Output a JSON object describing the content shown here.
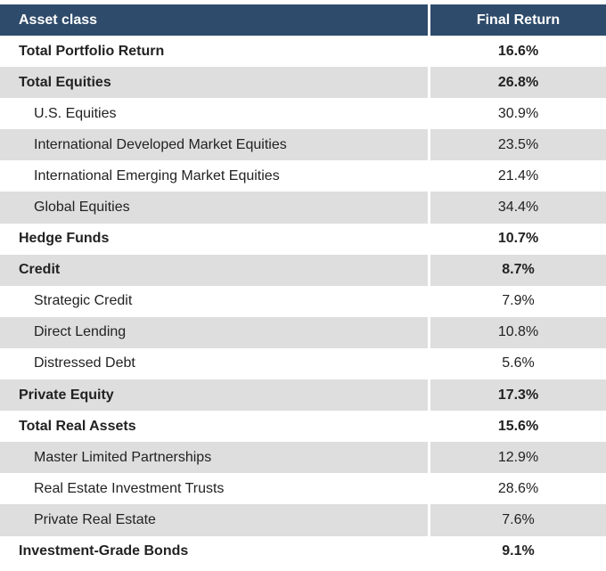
{
  "header": {
    "col_asset": "Asset class",
    "col_return": "Final Return"
  },
  "rows": [
    {
      "label": "Total Portfolio Return",
      "value": "16.6%"
    },
    {
      "label": "Total Equities",
      "value": "26.8%"
    },
    {
      "label": "U.S. Equities",
      "value": "30.9%"
    },
    {
      "label": "International Developed Market Equities",
      "value": "23.5%"
    },
    {
      "label": "International Emerging Market Equities",
      "value": "21.4%"
    },
    {
      "label": "Global Equities",
      "value": "34.4%"
    },
    {
      "label": "Hedge Funds",
      "value": "10.7%"
    },
    {
      "label": "Credit",
      "value": "8.7%"
    },
    {
      "label": "Strategic Credit",
      "value": "7.9%"
    },
    {
      "label": "Direct Lending",
      "value": "10.8%"
    },
    {
      "label": "Distressed Debt",
      "value": "5.6%"
    },
    {
      "label": "Private Equity",
      "value": "17.3%"
    },
    {
      "label": "Total Real Assets",
      "value": "15.6%"
    },
    {
      "label": "Master Limited Partnerships",
      "value": "12.9%"
    },
    {
      "label": "Real Estate Investment Trusts",
      "value": "28.6%"
    },
    {
      "label": "Private Real Estate",
      "value": "7.6%"
    },
    {
      "label": "Investment-Grade Bonds",
      "value": "9.1%"
    }
  ]
}
